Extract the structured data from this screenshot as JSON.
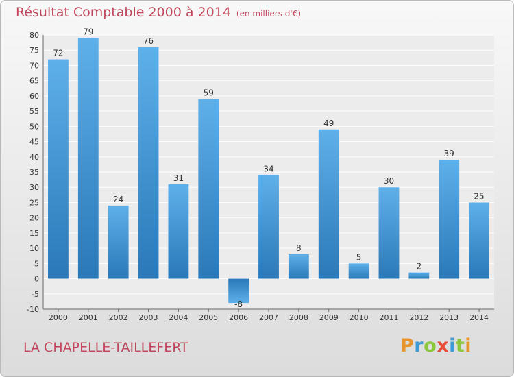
{
  "header": {
    "title": "Résultat Comptable 2000 à 2014",
    "unit": "(en milliers d'€)"
  },
  "footer": {
    "location": "LA CHAPELLE-TAILLEFERT",
    "brand": "Proxiti"
  },
  "colors": {
    "title": "#c2485e",
    "bar_light": "#5eb0ea",
    "bar_dark": "#2a78b8"
  },
  "chart_data": {
    "type": "bar",
    "title": "Résultat Comptable 2000 à 2014",
    "subtitle": "(en milliers d'€)",
    "categories": [
      "2000",
      "2001",
      "2002",
      "2003",
      "2004",
      "2005",
      "2006",
      "2007",
      "2008",
      "2009",
      "2010",
      "2011",
      "2012",
      "2013",
      "2014"
    ],
    "values": [
      72,
      79,
      24,
      76,
      31,
      59,
      -8,
      34,
      8,
      49,
      5,
      30,
      2,
      39,
      25
    ],
    "ylim": [
      -10,
      80
    ],
    "yticks": [
      -10,
      -5,
      0,
      5,
      10,
      15,
      20,
      25,
      30,
      35,
      40,
      45,
      50,
      55,
      60,
      65,
      70,
      75,
      80
    ],
    "grid": true,
    "xlabel": "",
    "ylabel": ""
  }
}
